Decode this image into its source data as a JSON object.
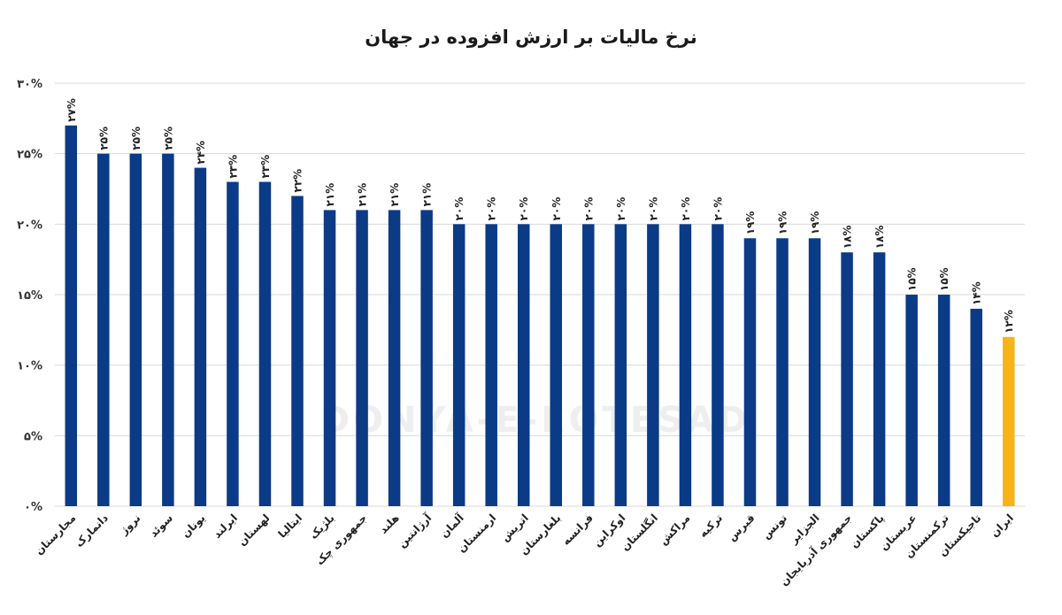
{
  "chart_data": {
    "type": "bar",
    "title": "نرخ مالیات بر ارزش افزوده در جهان",
    "categories": [
      "مجارستان",
      "دانمارک",
      "نروژ",
      "سوئد",
      "یونان",
      "ایرلند",
      "لهستان",
      "ایتالیا",
      "بلژیک",
      "جمهوری چک",
      "هلند",
      "آرژانتین",
      "آلمان",
      "ارمنستان",
      "اتریش",
      "بلغارستان",
      "فرانسه",
      "اوکراین",
      "انگلستان",
      "مراکش",
      "ترکیه",
      "قبرس",
      "تونس",
      "الجزایر",
      "جمهوری آذربایجان",
      "پاکستان",
      "عربستان",
      "ترکمنستان",
      "تاجیکستان",
      "ایران"
    ],
    "values": [
      27,
      25,
      25,
      25,
      24,
      23,
      23,
      22,
      21,
      21,
      21,
      21,
      20,
      20,
      20,
      20,
      20,
      20,
      20,
      20,
      20,
      19,
      19,
      19,
      18,
      18,
      15,
      15,
      14,
      12
    ],
    "data_labels": [
      "۲۷%",
      "۲۵%",
      "۲۵%",
      "۲۵%",
      "۲۴%",
      "۲۳%",
      "۲۳%",
      "۲۲%",
      "۲۱%",
      "۲۱%",
      "۲۱%",
      "۲۱%",
      "۲۰%",
      "۲۰%",
      "۲۰%",
      "۲۰%",
      "۲۰%",
      "۲۰%",
      "۲۰%",
      "۲۰%",
      "۲۰%",
      "۱۹%",
      "۱۹%",
      "۱۹%",
      "۱۸%",
      "۱۸%",
      "۱۵%",
      "۱۵%",
      "۱۴%",
      "۱۲%"
    ],
    "y_tick_labels": [
      "۰%",
      "۵%",
      "۱۰%",
      "۱۵%",
      "۲۰%",
      "۲۵%",
      "۳۰%"
    ],
    "y_ticks": [
      0,
      5,
      10,
      15,
      20,
      25,
      30
    ],
    "ylim": [
      0,
      30
    ],
    "grid": true,
    "colors": {
      "default": "#0b3a86",
      "highlight": "#f7b318",
      "grid": "#d9d9d9"
    },
    "highlight_category": "ایران"
  },
  "watermark": {
    "text": "DONYA-E-EQTESAD"
  }
}
